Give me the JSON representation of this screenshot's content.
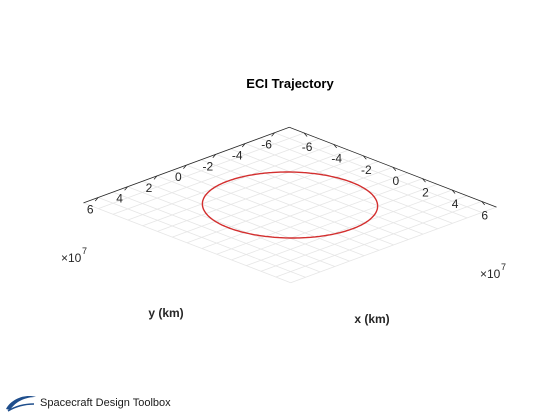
{
  "colors": {
    "trajectory": "#d32f2f",
    "grid": "#e6e6e6",
    "axis": "#262626",
    "logo_blue": "#1f4e8c"
  },
  "brand": {
    "name": "Spacecraft Design Toolbox",
    "logo_icon": "spacecraft-design-toolbox-logo"
  },
  "chart_data": {
    "type": "line",
    "view": "3d",
    "title": "ECI Trajectory",
    "xlabel": "x (km)",
    "ylabel": "y (km)",
    "zlabel": "",
    "xlim": [
      -7,
      7
    ],
    "ylim": [
      -7,
      7
    ],
    "xticks": [
      -6,
      -4,
      -2,
      0,
      2,
      4,
      6
    ],
    "yticks": [
      -6,
      -4,
      -2,
      0,
      2,
      4,
      6
    ],
    "x_multiplier": "×10",
    "x_multiplier_exponent": "7",
    "y_multiplier": "×10",
    "y_multiplier_exponent": "7",
    "grid": true,
    "series": [
      {
        "shape": "circular orbit in the x-y plane",
        "center": [
          0,
          0
        ],
        "radius": 4.2
      }
    ]
  }
}
